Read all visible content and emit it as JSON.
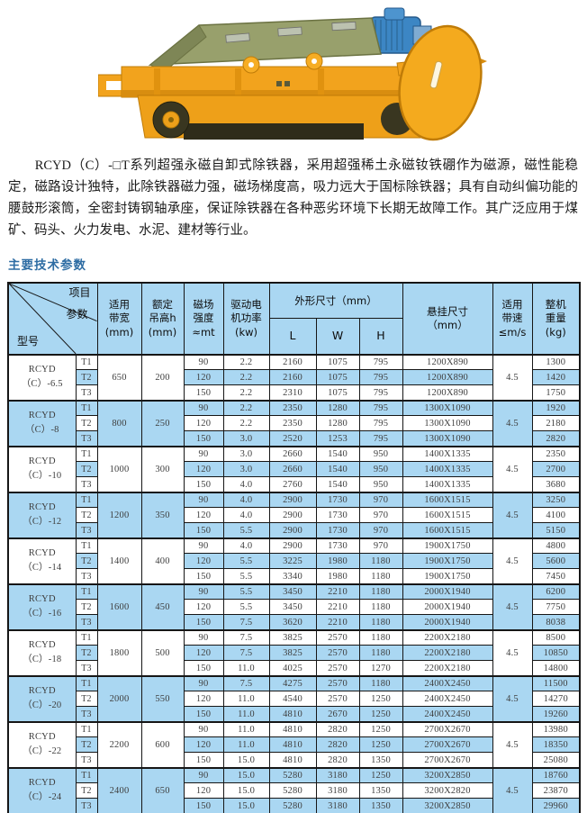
{
  "colors": {
    "stripe_blue": "#aad7f2",
    "title_blue": "#2d6ca3",
    "border": "#161616",
    "machine_yellow": "#f2a31d",
    "machine_olive": "#98a06c",
    "motor_blue": "#3c86c4"
  },
  "intro": "RCYD（C）-□T系列超强永磁自卸式除铁器，采用超强稀土永磁钕铁硼作为磁源，磁性能稳定，磁路设计独特，此除铁器磁力强，磁场梯度高，吸力远大于国标除铁器；具有自动纠偏功能的腰鼓形滚筒，全密封铸钢轴承座，保证除铁器在各种恶劣环境下长期无故障工作。其广泛应用于煤矿、码头、火力发电、水泥、建材等行业。",
  "section_title": "主要技术参数",
  "table": {
    "corner": {
      "top": "项目",
      "middle": "参数",
      "bottom": "型号"
    },
    "headers": {
      "bandwidth": "适用\n带宽\n(mm)",
      "height": "额定\n吊高h\n(mm)",
      "field": "磁场\n强度\n≈mt",
      "power": "驱动电\n机功率\n(kw)",
      "dims": "外形尺寸（mm）",
      "dim_l": "L",
      "dim_w": "W",
      "dim_h": "H",
      "suspension": "悬挂尺寸\n（mm）",
      "speed": "适用\n带速\n≤m/s",
      "weight": "整机\n重量\n(kg)"
    },
    "groups": [
      {
        "model": "RCYD\n（C）-6.5",
        "bandwidth": "650",
        "height": "200",
        "speed": "4.5",
        "rows": [
          [
            "T1",
            "90",
            "2.2",
            "2160",
            "1075",
            "795",
            "1200X890",
            "1300"
          ],
          [
            "T2",
            "120",
            "2.2",
            "2160",
            "1075",
            "795",
            "1200X890",
            "1420"
          ],
          [
            "T3",
            "150",
            "2.2",
            "2310",
            "1075",
            "795",
            "1200X890",
            "1750"
          ]
        ]
      },
      {
        "model": "RCYD\n（C）-8",
        "bandwidth": "800",
        "height": "250",
        "speed": "4.5",
        "rows": [
          [
            "T1",
            "90",
            "2.2",
            "2350",
            "1280",
            "795",
            "1300X1090",
            "1920"
          ],
          [
            "T2",
            "120",
            "2.2",
            "2350",
            "1280",
            "795",
            "1300X1090",
            "2180"
          ],
          [
            "T3",
            "150",
            "3.0",
            "2520",
            "1253",
            "795",
            "1300X1090",
            "2820"
          ]
        ]
      },
      {
        "model": "RCYD\n（C）-10",
        "bandwidth": "1000",
        "height": "300",
        "speed": "4.5",
        "rows": [
          [
            "T1",
            "90",
            "3.0",
            "2660",
            "1540",
            "950",
            "1400X1335",
            "2350"
          ],
          [
            "T2",
            "120",
            "3.0",
            "2660",
            "1540",
            "950",
            "1400X1335",
            "2700"
          ],
          [
            "T3",
            "150",
            "4.0",
            "2760",
            "1540",
            "950",
            "1400X1335",
            "3680"
          ]
        ]
      },
      {
        "model": "RCYD\n（C）-12",
        "bandwidth": "1200",
        "height": "350",
        "speed": "4.5",
        "rows": [
          [
            "T1",
            "90",
            "4.0",
            "2900",
            "1730",
            "970",
            "1600X1515",
            "3250"
          ],
          [
            "T2",
            "120",
            "4.0",
            "2900",
            "1730",
            "970",
            "1600X1515",
            "4100"
          ],
          [
            "T3",
            "150",
            "5.5",
            "2900",
            "1730",
            "970",
            "1600X1515",
            "5150"
          ]
        ]
      },
      {
        "model": "RCYD\n（C）-14",
        "bandwidth": "1400",
        "height": "400",
        "speed": "4.5",
        "rows": [
          [
            "T1",
            "90",
            "4.0",
            "2900",
            "1730",
            "970",
            "1900X1750",
            "4800"
          ],
          [
            "T2",
            "120",
            "5.5",
            "3225",
            "1980",
            "1180",
            "1900X1750",
            "5600"
          ],
          [
            "T3",
            "150",
            "5.5",
            "3340",
            "1980",
            "1180",
            "1900X1750",
            "7450"
          ]
        ]
      },
      {
        "model": "RCYD\n（C）-16",
        "bandwidth": "1600",
        "height": "450",
        "speed": "4.5",
        "rows": [
          [
            "T1",
            "90",
            "5.5",
            "3450",
            "2210",
            "1180",
            "2000X1940",
            "6200"
          ],
          [
            "T2",
            "120",
            "5.5",
            "3450",
            "2210",
            "1180",
            "2000X1940",
            "7750"
          ],
          [
            "T3",
            "150",
            "7.5",
            "3620",
            "2210",
            "1180",
            "2000X1940",
            "8038"
          ]
        ]
      },
      {
        "model": "RCYD\n（C）-18",
        "bandwidth": "1800",
        "height": "500",
        "speed": "4.5",
        "rows": [
          [
            "T1",
            "90",
            "7.5",
            "3825",
            "2570",
            "1180",
            "2200X2180",
            "8500"
          ],
          [
            "T2",
            "120",
            "7.5",
            "3825",
            "2570",
            "1180",
            "2200X2180",
            "10850"
          ],
          [
            "T3",
            "150",
            "11.0",
            "4025",
            "2570",
            "1270",
            "2200X2180",
            "14800"
          ]
        ]
      },
      {
        "model": "RCYD\n（C）-20",
        "bandwidth": "2000",
        "height": "550",
        "speed": "4.5",
        "rows": [
          [
            "T1",
            "90",
            "7.5",
            "4275",
            "2570",
            "1180",
            "2400X2450",
            "11500"
          ],
          [
            "T2",
            "120",
            "11.0",
            "4540",
            "2570",
            "1250",
            "2400X2450",
            "14270"
          ],
          [
            "T3",
            "150",
            "11.0",
            "4810",
            "2670",
            "1250",
            "2400X2450",
            "19260"
          ]
        ]
      },
      {
        "model": "RCYD\n（C）-22",
        "bandwidth": "2200",
        "height": "600",
        "speed": "4.5",
        "rows": [
          [
            "T1",
            "90",
            "11.0",
            "4810",
            "2820",
            "1250",
            "2700X2670",
            "13980"
          ],
          [
            "T2",
            "120",
            "11.0",
            "4810",
            "2820",
            "1250",
            "2700X2670",
            "18350"
          ],
          [
            "T3",
            "150",
            "15.0",
            "4810",
            "2820",
            "1350",
            "2700X2670",
            "25080"
          ]
        ]
      },
      {
        "model": "RCYD\n（C）-24",
        "bandwidth": "2400",
        "height": "650",
        "speed": "4.5",
        "rows": [
          [
            "T1",
            "90",
            "15.0",
            "5280",
            "3180",
            "1250",
            "3200X2850",
            "18760"
          ],
          [
            "T2",
            "120",
            "15.0",
            "5280",
            "3180",
            "1350",
            "3200X2820",
            "23870"
          ],
          [
            "T3",
            "150",
            "15.0",
            "5280",
            "3180",
            "1350",
            "3200X2850",
            "29960"
          ]
        ]
      }
    ]
  }
}
